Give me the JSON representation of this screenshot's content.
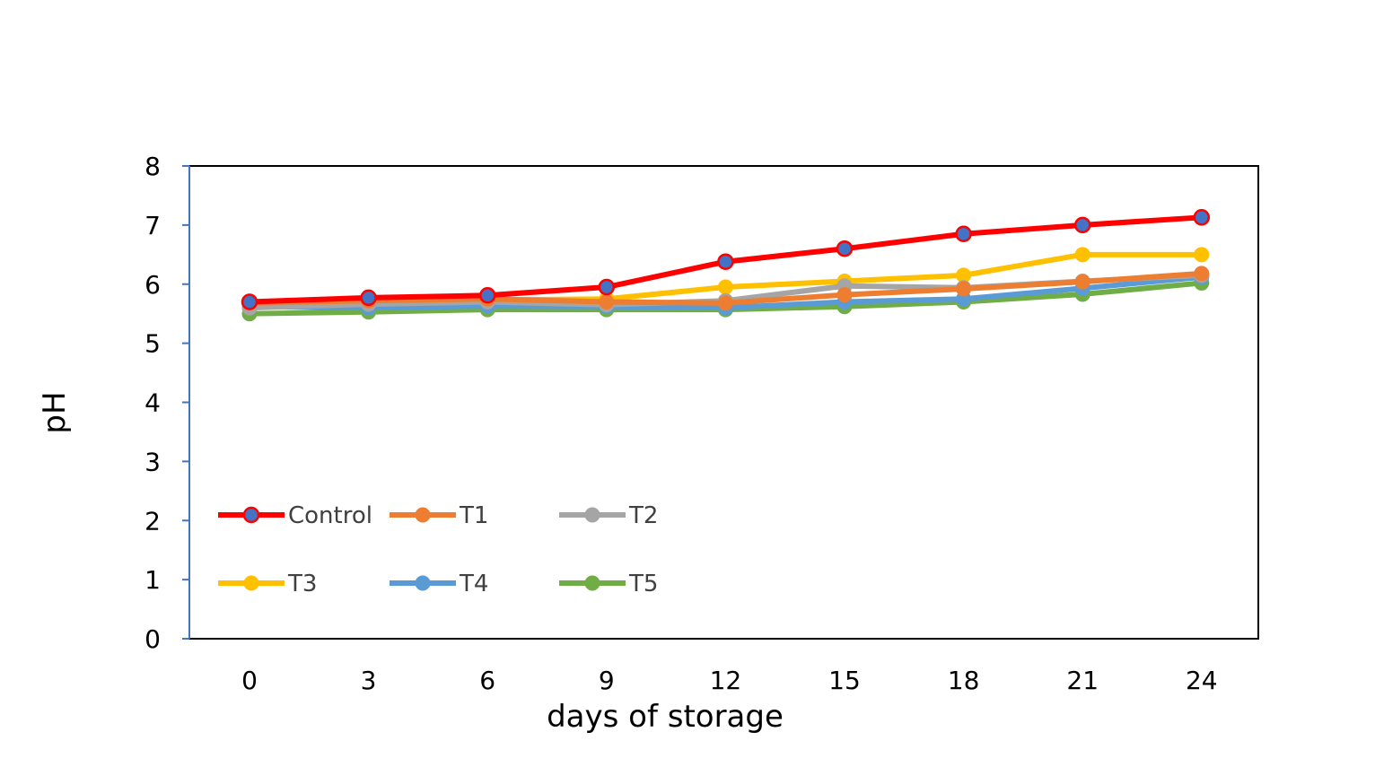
{
  "chart_data": {
    "type": "line",
    "title": "",
    "xlabel": "days of storage",
    "ylabel": "pH",
    "x": [
      0,
      3,
      6,
      9,
      12,
      15,
      18,
      21,
      24
    ],
    "ylim": [
      0,
      8
    ],
    "yticks": [
      0,
      1,
      2,
      3,
      4,
      5,
      6,
      7,
      8
    ],
    "grid": false,
    "legend": "bottom-left inside, two rows",
    "series": [
      {
        "name": "Control",
        "color": "#ff0000",
        "marker_fill": "#4472c4",
        "values": [
          5.7,
          5.77,
          5.81,
          5.95,
          6.38,
          6.6,
          6.85,
          7.0,
          7.13
        ]
      },
      {
        "name": "T1",
        "color": "#ed7d31",
        "values": [
          5.68,
          5.72,
          5.75,
          5.7,
          5.68,
          5.82,
          5.92,
          6.04,
          6.18
        ]
      },
      {
        "name": "T2",
        "color": "#a5a5a5",
        "values": [
          5.6,
          5.66,
          5.7,
          5.65,
          5.72,
          5.97,
          5.94,
          6.05,
          6.15
        ]
      },
      {
        "name": "T3",
        "color": "#ffc000",
        "values": [
          5.65,
          5.7,
          5.73,
          5.75,
          5.95,
          6.05,
          6.15,
          6.5,
          6.5
        ]
      },
      {
        "name": "T4",
        "color": "#5b9bd5",
        "values": [
          5.62,
          5.6,
          5.63,
          5.62,
          5.6,
          5.7,
          5.75,
          5.93,
          6.12
        ]
      },
      {
        "name": "T5",
        "color": "#70ad47",
        "values": [
          5.5,
          5.53,
          5.57,
          5.57,
          5.57,
          5.62,
          5.7,
          5.83,
          6.02
        ]
      }
    ]
  }
}
